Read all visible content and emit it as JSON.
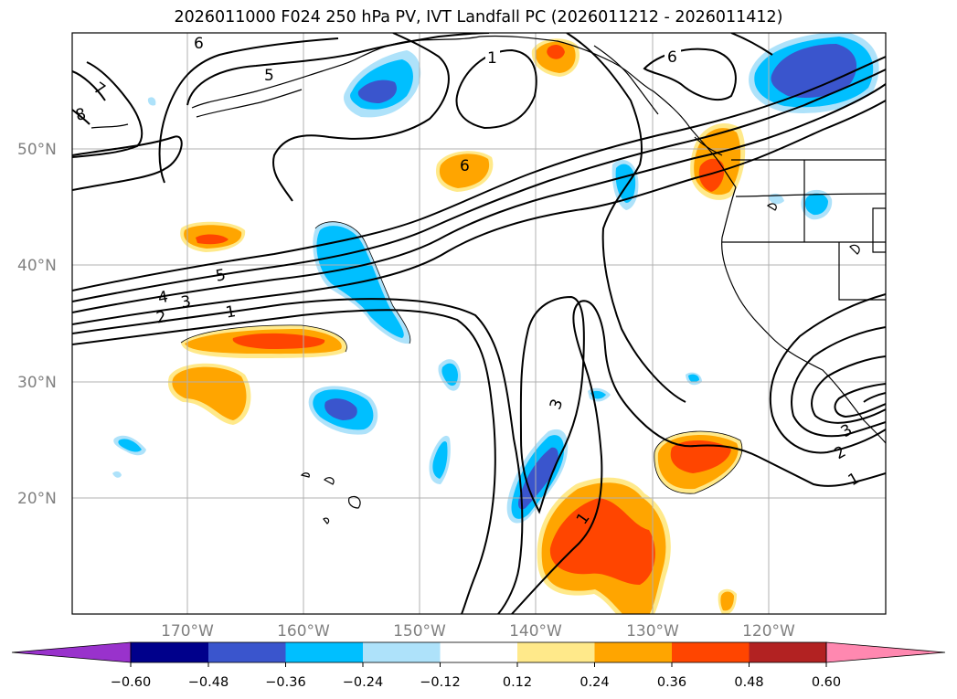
{
  "title": "2026011000 F024 250 hPa PV, IVT Landfall PC (2026011212 - 2026011412)",
  "map": {
    "lat_labels": [
      "50°N",
      "40°N",
      "30°N",
      "20°N"
    ],
    "lon_labels": [
      "170°W",
      "160°W",
      "150°W",
      "140°W",
      "130°W",
      "120°W"
    ],
    "contour_labels": [
      "6",
      "5",
      "7",
      "8",
      "1",
      "6",
      "6",
      "5",
      "4",
      "3",
      "2",
      "1",
      "3",
      "1",
      "3",
      "2",
      "1"
    ]
  },
  "colorbar": {
    "ticks": [
      "−0.60",
      "−0.48",
      "−0.36",
      "−0.24",
      "−0.12",
      "0.12",
      "0.24",
      "0.36",
      "0.48",
      "0.60"
    ],
    "colors": [
      "#9932cc",
      "#00008b",
      "#3a55cd",
      "#00bfff",
      "#aee2fa",
      "#ffffff",
      "#ffe98a",
      "#ffa500",
      "#ff4500",
      "#b22222",
      "#ff88b0"
    ]
  }
}
